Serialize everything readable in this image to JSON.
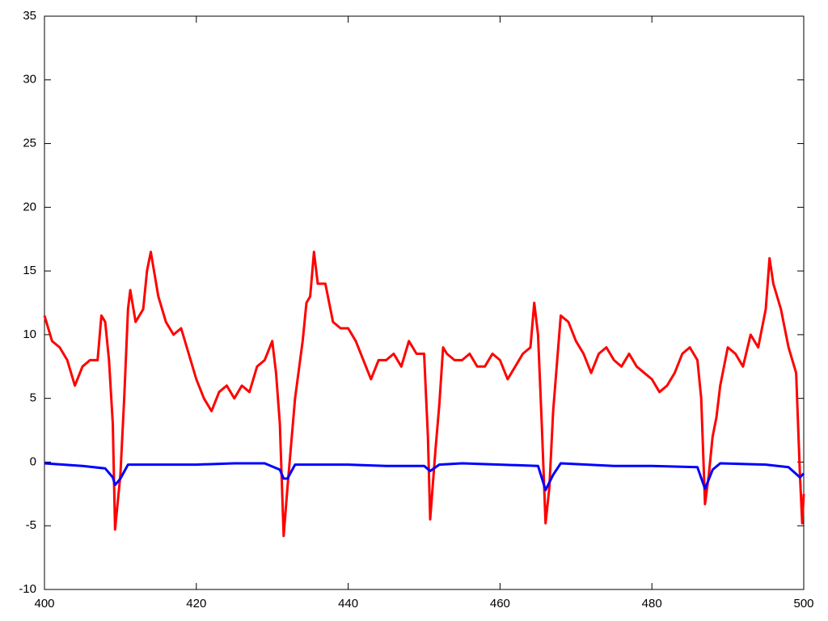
{
  "chart_data": {
    "type": "line",
    "xlim": [
      400,
      500
    ],
    "xticks": [
      400,
      420,
      440,
      460,
      480,
      500
    ],
    "ylim": [
      -10,
      35
    ],
    "yticks": [
      -10,
      -5,
      0,
      5,
      10,
      15,
      20,
      25,
      30,
      35
    ],
    "grid": false,
    "series": [
      {
        "color": "#ff0000",
        "x": [
          400,
          401,
          402,
          403,
          404,
          405,
          406,
          407,
          407.5,
          408,
          408.5,
          409,
          409.3,
          410,
          410.5,
          411,
          411.3,
          412,
          413,
          413.5,
          414,
          415,
          416,
          417,
          418,
          419,
          420,
          421,
          422,
          423,
          424,
          425,
          426,
          427,
          428,
          429,
          430,
          430.5,
          431,
          431.5,
          432,
          433,
          434,
          434.5,
          435,
          435.5,
          436,
          437,
          438,
          439,
          440,
          441,
          442,
          443,
          444,
          445,
          446,
          447,
          448,
          449,
          450,
          450.5,
          450.8,
          451.5,
          452,
          452.5,
          453,
          454,
          455,
          456,
          457,
          458,
          459,
          460,
          461,
          462,
          463,
          464,
          464.5,
          465,
          465.5,
          466,
          466.5,
          467,
          468,
          469,
          470,
          471,
          472,
          473,
          474,
          475,
          476,
          477,
          478,
          479,
          480,
          481,
          482,
          483,
          484,
          485,
          486,
          486.5,
          487,
          487.5,
          488,
          488.5,
          489,
          490,
          491,
          492,
          493,
          494,
          495,
          495.5,
          496,
          497,
          498,
          499,
          499.5,
          499.8,
          500
        ],
        "values": [
          11.5,
          9.5,
          9,
          8,
          6,
          7.5,
          8,
          8,
          11.5,
          11,
          8,
          3,
          -5.3,
          -1,
          5,
          12,
          13.5,
          11,
          12,
          15,
          16.5,
          13,
          11,
          10,
          10.5,
          8.5,
          6.5,
          5,
          4,
          5.5,
          6,
          5,
          6,
          5.5,
          7.5,
          8,
          9.5,
          7,
          3,
          -5.8,
          -2,
          5,
          9.5,
          12.5,
          13,
          16.5,
          14,
          14,
          11,
          10.5,
          10.5,
          9.5,
          8,
          6.5,
          8,
          8,
          8.5,
          7.5,
          9.5,
          8.5,
          8.5,
          2,
          -4.5,
          1,
          4.5,
          9,
          8.5,
          8,
          8,
          8.5,
          7.5,
          7.5,
          8.5,
          8,
          6.5,
          7.5,
          8.5,
          9,
          12.5,
          10,
          3,
          -4.8,
          -2,
          4,
          11.5,
          11,
          9.5,
          8.5,
          7,
          8.5,
          9,
          8,
          7.5,
          8.5,
          7.5,
          7,
          6.5,
          5.5,
          6,
          7,
          8.5,
          9,
          8,
          5,
          -3.3,
          -1,
          2,
          3.5,
          6,
          9,
          8.5,
          7.5,
          10,
          9,
          12,
          16,
          14,
          12,
          9,
          7,
          -1,
          -4.8,
          -2.5
        ]
      },
      {
        "color": "#0000ff",
        "x": [
          400,
          405,
          408,
          409,
          409.3,
          410,
          411,
          420,
          425,
          429,
          431,
          431.5,
          432,
          433,
          440,
          445,
          450,
          450.8,
          452,
          455,
          460,
          465,
          466,
          467,
          468,
          475,
          480,
          486,
          487,
          488,
          489,
          495,
          498,
          499.5,
          500
        ],
        "values": [
          -0.1,
          -0.3,
          -0.5,
          -1.2,
          -1.8,
          -1.3,
          -0.2,
          -0.2,
          -0.1,
          -0.1,
          -0.6,
          -1.3,
          -1.3,
          -0.2,
          -0.2,
          -0.3,
          -0.3,
          -0.7,
          -0.2,
          -0.1,
          -0.2,
          -0.3,
          -2.2,
          -1,
          -0.1,
          -0.3,
          -0.3,
          -0.4,
          -2.1,
          -0.6,
          -0.1,
          -0.2,
          -0.4,
          -1.2,
          -0.9
        ]
      }
    ]
  }
}
